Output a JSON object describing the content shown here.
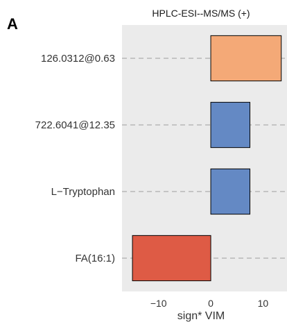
{
  "panel_label": "A",
  "chart_data": {
    "type": "bar",
    "orientation": "horizontal",
    "title": "HPLC-ESI--MS/MS (+)",
    "xlabel": "sign* VIM",
    "ylabel": "",
    "categories": [
      "126.0312@0.63",
      "722.6041@12.35",
      "L−Tryptophan",
      "FA(16:1)"
    ],
    "values": [
      13.5,
      7.5,
      7.5,
      -15.0
    ],
    "colors": [
      "#f4a977",
      "#6489c4",
      "#6489c4",
      "#de5b45"
    ],
    "xlim": [
      -17,
      14.6
    ],
    "xticks": [
      -10,
      0,
      10
    ],
    "xtick_labels": [
      "−10",
      "0",
      "10"
    ],
    "grid": true,
    "background": "#ebebeb"
  }
}
